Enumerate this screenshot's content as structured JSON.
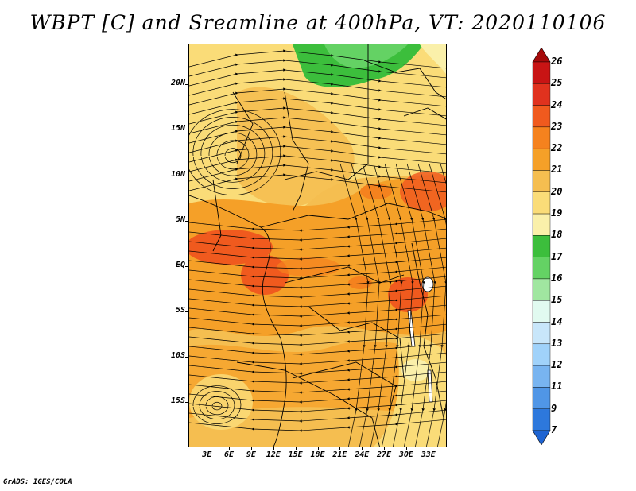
{
  "title": "WBPT [C] and Sreamline at 400hPa, VT: 2020110106",
  "credit": "GrADS: IGES/COLA",
  "map": {
    "lat_ticks": [
      {
        "value": 20,
        "label": "20N"
      },
      {
        "value": 15,
        "label": "15N"
      },
      {
        "value": 10,
        "label": "10N"
      },
      {
        "value": 5,
        "label": "5N"
      },
      {
        "value": 0,
        "label": "EQ"
      },
      {
        "value": -5,
        "label": "5S"
      },
      {
        "value": -10,
        "label": "10S"
      },
      {
        "value": -15,
        "label": "15S"
      }
    ],
    "lon_ticks": [
      {
        "value": 3,
        "label": "3E"
      },
      {
        "value": 6,
        "label": "6E"
      },
      {
        "value": 9,
        "label": "9E"
      },
      {
        "value": 12,
        "label": "12E"
      },
      {
        "value": 15,
        "label": "15E"
      },
      {
        "value": 18,
        "label": "18E"
      },
      {
        "value": 21,
        "label": "21E"
      },
      {
        "value": 24,
        "label": "24E"
      },
      {
        "value": 27,
        "label": "27E"
      },
      {
        "value": 30,
        "label": "30E"
      },
      {
        "value": 33,
        "label": "33E"
      }
    ],
    "lon_range": [
      0.5,
      35.5
    ],
    "lat_range": [
      -20,
      24.5
    ]
  },
  "colorbar": {
    "labels": [
      "26",
      "25",
      "24",
      "23",
      "22",
      "21",
      "20",
      "19",
      "18",
      "17",
      "16",
      "15",
      "14",
      "13",
      "12",
      "11",
      "9",
      "7"
    ],
    "colors": [
      "#a50a0a",
      "#c81414",
      "#e0321e",
      "#f05a1e",
      "#f5821e",
      "#f5a028",
      "#f5be50",
      "#fadc78",
      "#faf0aa",
      "#3cbe3c",
      "#64d264",
      "#a0e6a0",
      "#e1faf0",
      "#c8e6fa",
      "#a0d2fa",
      "#78b4f0",
      "#5096e6",
      "#2d78dc",
      "#1e64d2"
    ]
  }
}
